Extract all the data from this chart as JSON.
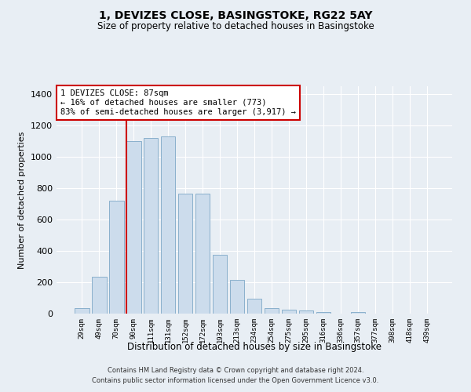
{
  "title": "1, DEVIZES CLOSE, BASINGSTOKE, RG22 5AY",
  "subtitle": "Size of property relative to detached houses in Basingstoke",
  "xlabel": "Distribution of detached houses by size in Basingstoke",
  "ylabel": "Number of detached properties",
  "footer_line1": "Contains HM Land Registry data © Crown copyright and database right 2024.",
  "footer_line2": "Contains public sector information licensed under the Open Government Licence v3.0.",
  "annotation_title": "1 DEVIZES CLOSE: 87sqm",
  "annotation_line1": "← 16% of detached houses are smaller (773)",
  "annotation_line2": "83% of semi-detached houses are larger (3,917) →",
  "bar_categories": [
    "29sqm",
    "49sqm",
    "70sqm",
    "90sqm",
    "111sqm",
    "131sqm",
    "152sqm",
    "172sqm",
    "193sqm",
    "213sqm",
    "234sqm",
    "254sqm",
    "275sqm",
    "295sqm",
    "316sqm",
    "336sqm",
    "357sqm",
    "377sqm",
    "398sqm",
    "418sqm",
    "439sqm"
  ],
  "bar_values": [
    35,
    235,
    720,
    1100,
    1120,
    1130,
    765,
    765,
    375,
    215,
    95,
    35,
    25,
    20,
    10,
    0,
    8,
    0,
    0,
    0,
    0
  ],
  "bar_color": "#ccdcec",
  "bar_edgecolor": "#8ab0cc",
  "vline_color": "#cc0000",
  "annotation_box_edgecolor": "#cc0000",
  "bg_color": "#e8eef4",
  "grid_color": "#ffffff",
  "ylim": [
    0,
    1450
  ],
  "yticks": [
    0,
    200,
    400,
    600,
    800,
    1000,
    1200,
    1400
  ]
}
